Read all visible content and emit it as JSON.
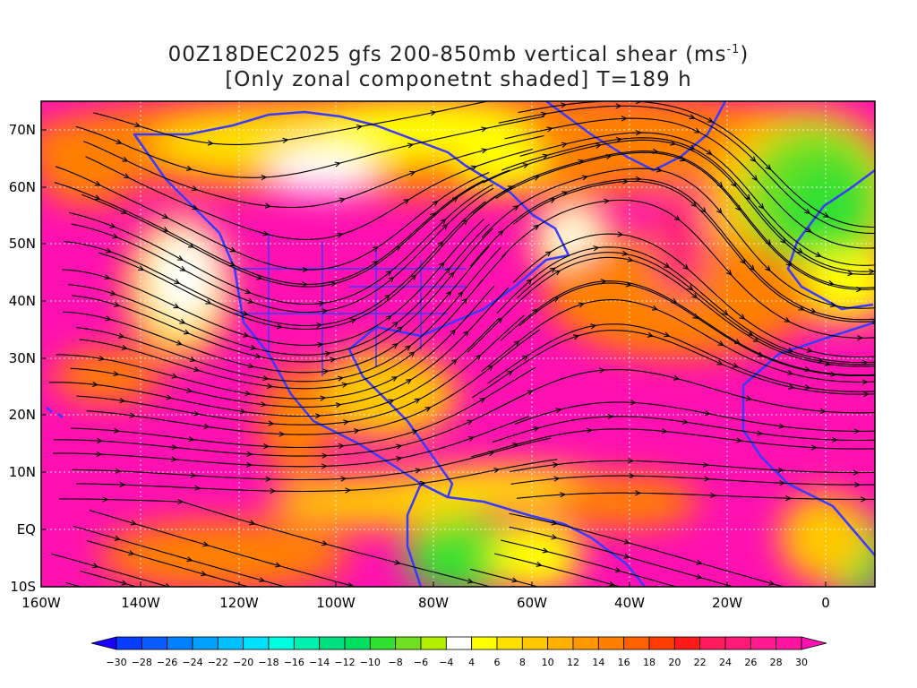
{
  "header": {
    "line1_prefix": "00Z18DEC2025 gfs 200-850mb vertical shear (ms",
    "line1_exp": "-1",
    "line1_suffix": ")",
    "line2": "[Only zonal componetnt shaded] T=189 h"
  },
  "axes": {
    "lat_labels": [
      "70N",
      "60N",
      "50N",
      "40N",
      "30N",
      "20N",
      "10N",
      "EQ",
      "10S"
    ],
    "lon_labels": [
      "160W",
      "140W",
      "120W",
      "100W",
      "80W",
      "60W",
      "40W",
      "20W",
      "0"
    ]
  },
  "colorbar": {
    "labels": [
      "-30",
      "-28",
      "-26",
      "-24",
      "-22",
      "-20",
      "-18",
      "-16",
      "-14",
      "-12",
      "-10",
      "-8",
      "-6",
      "-4",
      "4",
      "6",
      "8",
      "10",
      "12",
      "14",
      "16",
      "18",
      "20",
      "22",
      "24",
      "26",
      "28",
      "30"
    ],
    "colors": [
      "#1a00ff",
      "#0a3cff",
      "#0a5cff",
      "#0080ff",
      "#00a0ff",
      "#00c0ff",
      "#00e0ff",
      "#00ffe0",
      "#00f0b0",
      "#00e080",
      "#00e060",
      "#30e030",
      "#70e020",
      "#b0f000",
      "#ffffff",
      "#ffff00",
      "#ffe000",
      "#ffc800",
      "#ffb000",
      "#ff9800",
      "#ff8000",
      "#ff6000",
      "#ff3c00",
      "#ff1a1a",
      "#ff1a5a",
      "#ff1a78",
      "#ff1a90",
      "#ff14a0",
      "#ff10b0"
    ]
  },
  "map": {
    "colors": {
      "shear_max": "#ff10b0",
      "shear_high": "#ff1a78",
      "shear_mid": "#ff8000",
      "shear_low": "#ffc800",
      "shear_weak": "#ffff00",
      "shear_neg": "#30e030",
      "coast": "#3a3aff",
      "streamline": "#000000"
    }
  }
}
